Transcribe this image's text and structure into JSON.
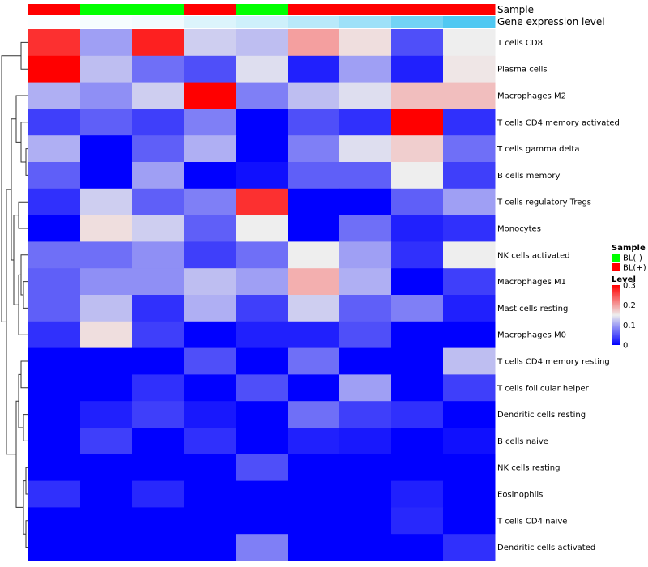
{
  "chart_data": {
    "type": "heatmap",
    "annotation_tracks": [
      {
        "name": "Sample",
        "values": [
          "BL(+)",
          "BL(-)",
          "BL(-)",
          "BL(+)",
          "BL(-)",
          "BL(+)",
          "BL(+)",
          "BL(+)",
          "BL(+)"
        ]
      },
      {
        "name": "Gene expression level",
        "values": [
          0.02,
          0.05,
          0.08,
          0.2,
          0.28,
          0.4,
          0.55,
          0.8,
          1.0
        ]
      }
    ],
    "rows": [
      "T cells CD8",
      "Plasma cells",
      "Macrophages M2",
      "T cells CD4 memory activated",
      "T cells gamma delta",
      "B cells memory",
      "T cells regulatory  Tregs",
      "Monocytes",
      "NK cells activated",
      "Macrophages M1",
      "Mast cells resting",
      "Macrophages M0",
      "T cells CD4 memory resting",
      "T cells follicular helper",
      "Dendritic cells resting",
      "B cells naive",
      "NK cells resting",
      "Eosinophils",
      "T cells CD4 naive",
      "Dendritic cells activated"
    ],
    "n_columns": 9,
    "values": [
      [
        0.27,
        0.1,
        0.28,
        0.13,
        0.12,
        0.2,
        0.16,
        0.05,
        0.15
      ],
      [
        0.31,
        0.12,
        0.07,
        0.05,
        0.14,
        0.02,
        0.1,
        0.02,
        0.155
      ],
      [
        0.11,
        0.09,
        0.13,
        0.3,
        0.08,
        0.12,
        0.14,
        0.18,
        0.18
      ],
      [
        0.04,
        0.06,
        0.04,
        0.08,
        0.0,
        0.05,
        0.03,
        0.32,
        0.03
      ],
      [
        0.11,
        0.0,
        0.06,
        0.11,
        0.0,
        0.08,
        0.14,
        0.17,
        0.07
      ],
      [
        0.06,
        0.0,
        0.1,
        0.0,
        0.01,
        0.06,
        0.06,
        0.15,
        0.04
      ],
      [
        0.03,
        0.13,
        0.06,
        0.08,
        0.27,
        0.0,
        0.0,
        0.06,
        0.1
      ],
      [
        0.0,
        0.16,
        0.13,
        0.06,
        0.15,
        0.0,
        0.07,
        0.02,
        0.03
      ],
      [
        0.07,
        0.07,
        0.09,
        0.04,
        0.07,
        0.15,
        0.1,
        0.03,
        0.15
      ],
      [
        0.06,
        0.09,
        0.09,
        0.12,
        0.1,
        0.19,
        0.11,
        0.0,
        0.04
      ],
      [
        0.06,
        0.12,
        0.03,
        0.11,
        0.04,
        0.13,
        0.06,
        0.08,
        0.02
      ],
      [
        0.03,
        0.16,
        0.04,
        0.0,
        0.02,
        0.02,
        0.05,
        0.0,
        0.0
      ],
      [
        0.0,
        0.0,
        0.0,
        0.05,
        0.0,
        0.07,
        0.0,
        0.0,
        0.12
      ],
      [
        0.0,
        0.0,
        0.03,
        0.0,
        0.05,
        0.0,
        0.1,
        0.0,
        0.04
      ],
      [
        0.0,
        0.02,
        0.04,
        0.015,
        0.0,
        0.07,
        0.04,
        0.03,
        0.0
      ],
      [
        0.0,
        0.04,
        0.0,
        0.03,
        0.0,
        0.02,
        0.015,
        0.0,
        0.01
      ],
      [
        0.0,
        0.0,
        0.0,
        0.0,
        0.05,
        0.0,
        0.0,
        0.0,
        0.0
      ],
      [
        0.03,
        0.0,
        0.025,
        0.0,
        0.0,
        0.0,
        0.0,
        0.02,
        0.0
      ],
      [
        0.0,
        0.0,
        0.0,
        0.0,
        0.0,
        0.0,
        0.0,
        0.025,
        0.0
      ],
      [
        0.0,
        0.0,
        0.0,
        0.0,
        0.08,
        0.0,
        0.0,
        0.0,
        0.03
      ]
    ],
    "color_scale": {
      "min": 0,
      "mid": 0.15,
      "max": 0.3,
      "low_color": "#0000FF",
      "mid_color": "#EEEEEE",
      "high_color": "#FF0000"
    },
    "legend": {
      "sample_title": "Sample",
      "sample_items": [
        {
          "label": "BL(-)",
          "color": "#00FF00"
        },
        {
          "label": "BL(+)",
          "color": "#FF0000"
        }
      ],
      "level_title": "Level",
      "level_ticks": [
        {
          "label": "0.3",
          "value": 0.3
        },
        {
          "label": "0.2",
          "value": 0.2
        },
        {
          "label": "0.1",
          "value": 0.1
        },
        {
          "label": "0",
          "value": 0.0
        }
      ],
      "placement": "right"
    },
    "annotation_colors": {
      "BL(+)": "#FF0000",
      "BL(-)": "#00FF00",
      "gene_low": "#FFFFFF",
      "gene_high": "#4FC8F2"
    },
    "row_dendrogram": true
  }
}
